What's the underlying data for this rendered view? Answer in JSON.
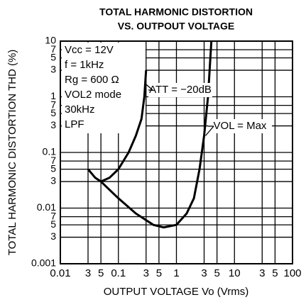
{
  "chart_data": {
    "type": "line",
    "title": [
      "TOTAL HARMONIC DISTORTION",
      "VS. OUTPOUT VOLTAGE"
    ],
    "ylabel": "TOTAL HARMONIC DISTORTION THD (%)",
    "xlabel": "OUTPUT VOLTAGE  Vo (Vrms)",
    "xscale": "log",
    "yscale": "log",
    "grid": true,
    "xlim": [
      0.01,
      100
    ],
    "ylim": [
      0.001,
      10
    ],
    "xticks": [
      0.01,
      {
        "value": 0.03,
        "label": "3"
      },
      {
        "value": 0.05,
        "label": "5"
      },
      0.1,
      {
        "value": 0.3,
        "label": "3"
      },
      {
        "value": 0.5,
        "label": "5"
      },
      1,
      {
        "value": 3,
        "label": "3"
      },
      {
        "value": 5,
        "label": "5"
      },
      10,
      {
        "value": 30,
        "label": "3"
      },
      {
        "value": 50,
        "label": "5"
      },
      100
    ],
    "yticks": [
      10,
      {
        "value": 7,
        "label": "7"
      },
      {
        "value": 5,
        "label": "5"
      },
      {
        "value": 3,
        "label": "3"
      },
      1,
      {
        "value": 0.7,
        "label": "7"
      },
      {
        "value": 0.5,
        "label": "5"
      },
      {
        "value": 0.3,
        "label": "3"
      },
      0.1,
      {
        "value": 0.07,
        "label": "7"
      },
      {
        "value": 0.05,
        "label": "5"
      },
      {
        "value": 0.03,
        "label": "3"
      },
      0.01,
      {
        "value": 0.007,
        "label": "7"
      },
      {
        "value": 0.005,
        "label": "5"
      },
      {
        "value": 0.003,
        "label": "3"
      },
      0.001
    ],
    "conditions": [
      "Vcc = 12V",
      "f = 1kHz",
      "Rg = 600 Ω",
      "VOL2 mode",
      "30kHz",
      "LPF"
    ],
    "series": [
      {
        "name": "ATT = −20dB",
        "color": "#000000",
        "x": [
          0.03,
          0.04,
          0.05,
          0.07,
          0.1,
          0.15,
          0.2,
          0.25,
          0.28,
          0.3
        ],
        "values": [
          0.05,
          0.035,
          0.03,
          0.035,
          0.05,
          0.1,
          0.2,
          0.4,
          1,
          3
        ]
      },
      {
        "name": "VOL = Max",
        "color": "#000000",
        "x": [
          0.05,
          0.1,
          0.2,
          0.4,
          0.6,
          1,
          1.5,
          2,
          2.5,
          3,
          3.5,
          4
        ],
        "values": [
          0.03,
          0.015,
          0.008,
          0.005,
          0.0045,
          0.005,
          0.008,
          0.015,
          0.05,
          0.2,
          1,
          10
        ]
      }
    ]
  }
}
